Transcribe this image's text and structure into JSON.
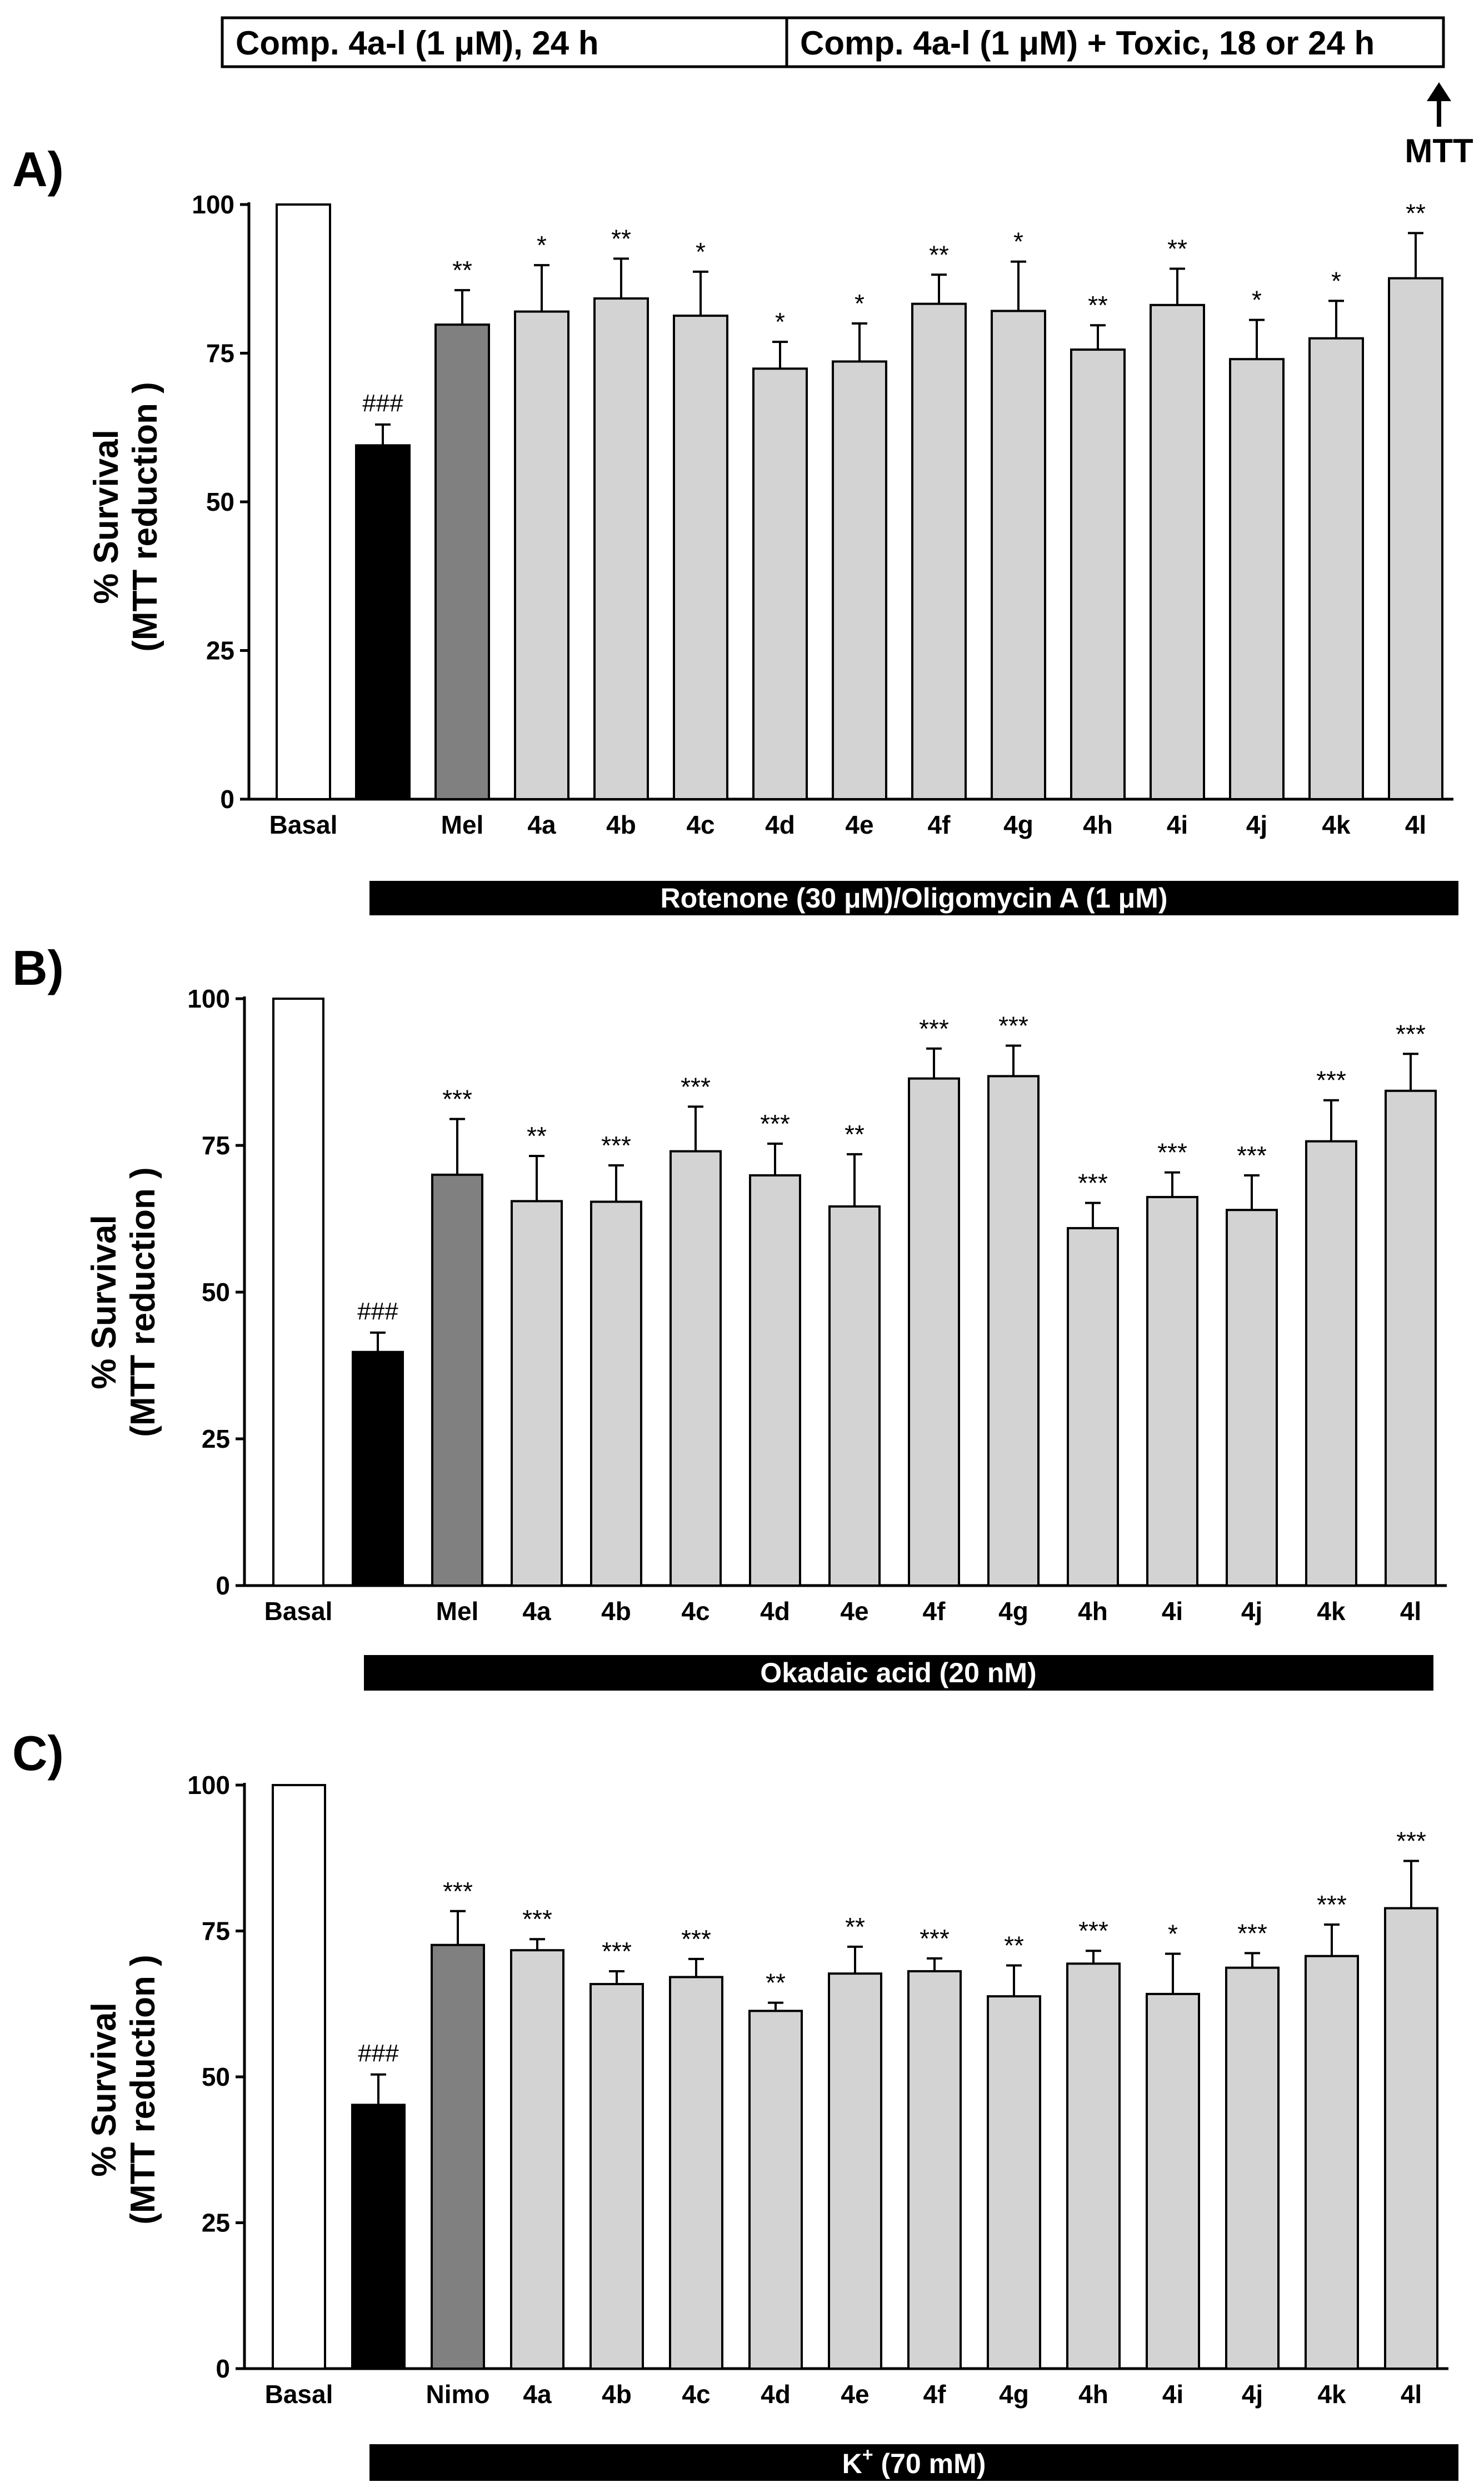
{
  "header": {
    "box_left_label": "Comp. 4a-l (1 μM), 24 h",
    "box_right_label": "Comp. 4a-l (1 μM) +  Toxic, 18 or 24 h",
    "arrow_label": "MTT"
  },
  "colors": {
    "basal": "#ffffff",
    "toxic": "#000000",
    "reference": "#808080",
    "compound": "#d3d3d3",
    "stroke": "#000000"
  },
  "chart_data": [
    {
      "panel": "A)",
      "type": "bar",
      "ylabel_line1": "% Survival",
      "ylabel_line2": "(MTT reduction )",
      "ylim": [
        0,
        100
      ],
      "yticks": [
        0,
        25,
        50,
        75,
        100
      ],
      "ytick_labels": [
        "0",
        "25",
        "50",
        "75",
        "100"
      ],
      "categories": [
        "Basal",
        "",
        "Mel",
        "4a",
        "4b",
        "4c",
        "4d",
        "4e",
        "4f",
        "4g",
        "4h",
        "4i",
        "4j",
        "4k",
        "4l"
      ],
      "values": [
        100,
        59.5,
        79.8,
        82,
        84.2,
        81.3,
        72.4,
        73.6,
        83.3,
        82.1,
        75.6,
        83.1,
        74,
        77.5,
        87.6
      ],
      "errors": [
        0,
        3.5,
        5.8,
        7.8,
        6.7,
        7.4,
        4.5,
        6.4,
        4.9,
        8.3,
        4.1,
        6.1,
        6.6,
        6.3,
        7.6
      ],
      "annotations": [
        "",
        "###",
        "**",
        "*",
        "**",
        "*",
        "*",
        "*",
        "**",
        "*",
        "**",
        "**",
        "*",
        "*",
        "**"
      ],
      "fills": [
        "basal",
        "toxic",
        "reference",
        "compound",
        "compound",
        "compound",
        "compound",
        "compound",
        "compound",
        "compound",
        "compound",
        "compound",
        "compound",
        "compound",
        "compound"
      ],
      "toxic_label": "Rotenone (30 μM)/Oligomycin A (1 μM)"
    },
    {
      "panel": "B)",
      "type": "bar",
      "ylabel_line1": "% Survival",
      "ylabel_line2": "(MTT reduction )",
      "ylim": [
        0,
        100
      ],
      "yticks": [
        0,
        25,
        50,
        75,
        100
      ],
      "ytick_labels": [
        "0",
        "25",
        "50",
        "75",
        "100"
      ],
      "categories": [
        "Basal",
        "",
        "Mel",
        "4a",
        "4b",
        "4c",
        "4d",
        "4e",
        "4f",
        "4g",
        "4h",
        "4i",
        "4j",
        "4k",
        "4l"
      ],
      "values": [
        100,
        39.8,
        70,
        65.5,
        65.4,
        74,
        69.9,
        64.6,
        86.4,
        86.8,
        60.9,
        66.2,
        64,
        75.7,
        84.3
      ],
      "errors": [
        0,
        3.3,
        9.5,
        7.7,
        6.2,
        7.6,
        5.4,
        8.9,
        5.1,
        5.2,
        4.3,
        4.2,
        5.9,
        7,
        6.3
      ],
      "annotations": [
        "",
        "###",
        "***",
        "**",
        "***",
        "***",
        "***",
        "**",
        "***",
        "***",
        "***",
        "***",
        "***",
        "***",
        "***"
      ],
      "fills": [
        "basal",
        "toxic",
        "reference",
        "compound",
        "compound",
        "compound",
        "compound",
        "compound",
        "compound",
        "compound",
        "compound",
        "compound",
        "compound",
        "compound",
        "compound"
      ],
      "toxic_label": "Okadaic acid (20 nM)"
    },
    {
      "panel": "C)",
      "type": "bar",
      "ylabel_line1": "% Survival",
      "ylabel_line2": "(MTT reduction )",
      "ylim": [
        0,
        100
      ],
      "yticks": [
        0,
        25,
        50,
        75,
        100
      ],
      "ytick_labels": [
        "0",
        "25",
        "50",
        "75",
        "100"
      ],
      "categories": [
        "Basal",
        "",
        "Nimo",
        "4a",
        "4b",
        "4c",
        "4d",
        "4e",
        "4f",
        "4g",
        "4h",
        "4i",
        "4j",
        "4k",
        "4l"
      ],
      "values": [
        100,
        45.2,
        72.6,
        71.7,
        65.9,
        67.1,
        61.3,
        67.7,
        68.1,
        63.8,
        69.4,
        64.2,
        68.7,
        70.7,
        78.9
      ],
      "errors": [
        0,
        5.2,
        5.8,
        1.9,
        2.2,
        3.1,
        1.4,
        4.6,
        2.2,
        5.3,
        2.2,
        6.9,
        2.5,
        5.4,
        8.1
      ],
      "annotations": [
        "",
        "###",
        "***",
        "***",
        "***",
        "***",
        "**",
        "**",
        "***",
        "**",
        "***",
        "*",
        "***",
        "***",
        "***"
      ],
      "fills": [
        "basal",
        "toxic",
        "reference",
        "compound",
        "compound",
        "compound",
        "compound",
        "compound",
        "compound",
        "compound",
        "compound",
        "compound",
        "compound",
        "compound",
        "compound"
      ],
      "toxic_label_main": "K",
      "toxic_label_sup": "+",
      "toxic_label_tail": " (70 mM)"
    }
  ]
}
